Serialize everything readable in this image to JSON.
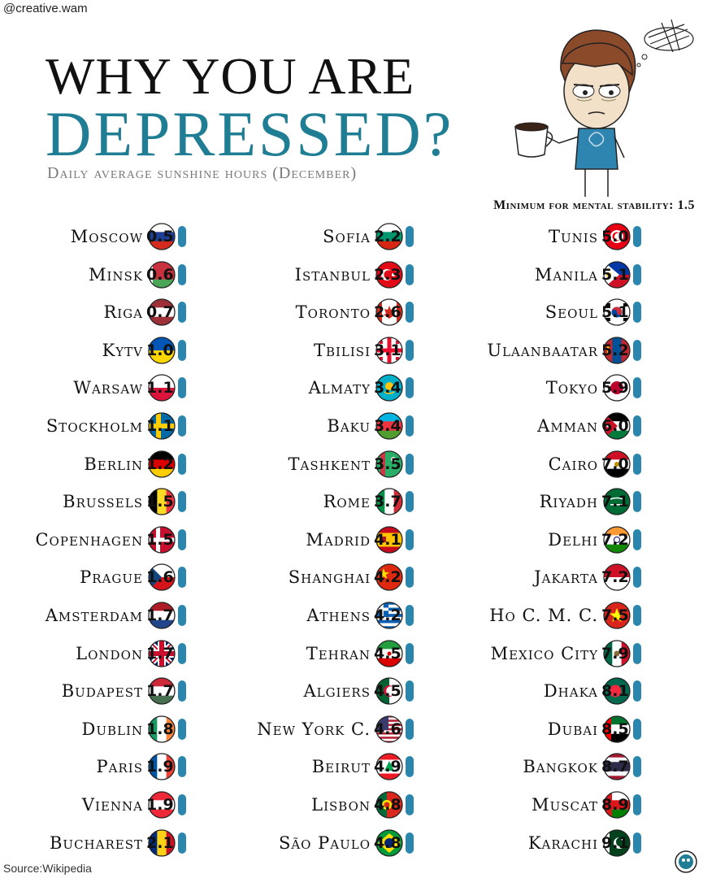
{
  "handle": "@creative.wam",
  "title_line1": "WHY YOU ARE",
  "title_line2": "DEPRESSED?",
  "subtitle": "Daily average sunshine hours (December)",
  "minimum_label": "Minimum for mental stability: 1.5",
  "source": "Source:Wikipedia",
  "colors": {
    "accent": "#1f7d94",
    "pill": "#2b86ae"
  },
  "chart_data": {
    "type": "table",
    "title": "Why you are depressed? Daily average sunshine hours (December)",
    "threshold": 1.5,
    "columns": [
      [
        {
          "city": "Moscow",
          "value": 0.5,
          "flag": "russia-flag-icon"
        },
        {
          "city": "Minsk",
          "value": 0.6,
          "flag": "belarus-flag-icon"
        },
        {
          "city": "Riga",
          "value": 0.7,
          "flag": "latvia-flag-icon"
        },
        {
          "city": "Kytv",
          "value": 1.0,
          "flag": "ukraine-flag-icon"
        },
        {
          "city": "Warsaw",
          "value": 1.1,
          "flag": "poland-flag-icon"
        },
        {
          "city": "Stockholm",
          "value": 1.1,
          "flag": "sweden-flag-icon"
        },
        {
          "city": "Berlin",
          "value": 1.2,
          "flag": "germany-flag-icon"
        },
        {
          "city": "Brussels",
          "value": 1.5,
          "flag": "belgium-flag-icon"
        },
        {
          "city": "Copenhagen",
          "value": 1.5,
          "flag": "denmark-flag-icon"
        },
        {
          "city": "Prague",
          "value": 1.6,
          "flag": "czechia-flag-icon"
        },
        {
          "city": "Amsterdam",
          "value": 1.7,
          "flag": "netherlands-flag-icon"
        },
        {
          "city": "London",
          "value": 1.7,
          "flag": "uk-flag-icon"
        },
        {
          "city": "Budapest",
          "value": 1.7,
          "flag": "hungary-flag-icon"
        },
        {
          "city": "Dublin",
          "value": 1.8,
          "flag": "ireland-flag-icon"
        },
        {
          "city": "Paris",
          "value": 1.9,
          "flag": "france-flag-icon"
        },
        {
          "city": "Vienna",
          "value": 1.9,
          "flag": "austria-flag-icon"
        },
        {
          "city": "Bucharest",
          "value": 2.1,
          "flag": "romania-flag-icon"
        }
      ],
      [
        {
          "city": "Sofia",
          "value": 2.2,
          "flag": "bulgaria-flag-icon"
        },
        {
          "city": "Istanbul",
          "value": 2.3,
          "flag": "turkey-flag-icon"
        },
        {
          "city": "Toronto",
          "value": 2.6,
          "flag": "canada-flag-icon"
        },
        {
          "city": "Tbilisi",
          "value": 3.1,
          "flag": "georgia-flag-icon"
        },
        {
          "city": "Almaty",
          "value": 3.4,
          "flag": "kazakhstan-flag-icon"
        },
        {
          "city": "Baku",
          "value": 3.4,
          "flag": "azerbaijan-flag-icon"
        },
        {
          "city": "Tashkent",
          "value": 3.5,
          "flag": "turkmenistan-flag-icon"
        },
        {
          "city": "Rome",
          "value": 3.7,
          "flag": "italy-flag-icon"
        },
        {
          "city": "Madrid",
          "value": 4.1,
          "flag": "spain-flag-icon"
        },
        {
          "city": "Shanghai",
          "value": 4.2,
          "flag": "china-flag-icon"
        },
        {
          "city": "Athens",
          "value": 4.2,
          "flag": "greece-flag-icon"
        },
        {
          "city": "Tehran",
          "value": 4.5,
          "flag": "iran-flag-icon"
        },
        {
          "city": "Algiers",
          "value": 4.5,
          "flag": "algeria-flag-icon"
        },
        {
          "city": "New York C.",
          "value": 4.6,
          "flag": "usa-flag-icon"
        },
        {
          "city": "Beirut",
          "value": 4.9,
          "flag": "lebanon-flag-icon"
        },
        {
          "city": "Lisbon",
          "value": 4.8,
          "flag": "portugal-flag-icon"
        },
        {
          "city": "São Paulo",
          "value": 4.8,
          "flag": "brazil-flag-icon"
        }
      ],
      [
        {
          "city": "Tunis",
          "value": 5.0,
          "flag": "tunisia-flag-icon"
        },
        {
          "city": "Manila",
          "value": 5.1,
          "flag": "philippines-flag-icon"
        },
        {
          "city": "Seoul",
          "value": 5.1,
          "flag": "south-korea-flag-icon"
        },
        {
          "city": "Ulaanbaatar",
          "value": 5.2,
          "flag": "mongolia-flag-icon"
        },
        {
          "city": "Tokyo",
          "value": 5.9,
          "flag": "japan-flag-icon"
        },
        {
          "city": "Amman",
          "value": 6.0,
          "flag": "jordan-flag-icon"
        },
        {
          "city": "Cairo",
          "value": 7.0,
          "flag": "egypt-flag-icon"
        },
        {
          "city": "Riyadh",
          "value": 7.1,
          "flag": "saudi-arabia-flag-icon"
        },
        {
          "city": "Delhi",
          "value": 7.2,
          "flag": "india-flag-icon"
        },
        {
          "city": "Jakarta",
          "value": 7.2,
          "flag": "indonesia-flag-icon"
        },
        {
          "city": "Ho C. M. C.",
          "value": 7.5,
          "flag": "vietnam-flag-icon"
        },
        {
          "city": "Mexico City",
          "value": 7.9,
          "flag": "mexico-flag-icon"
        },
        {
          "city": "Dhaka",
          "value": 8.1,
          "flag": "bangladesh-flag-icon"
        },
        {
          "city": "Dubai",
          "value": 8.5,
          "flag": "uae-flag-icon"
        },
        {
          "city": "Bangkok",
          "value": 8.7,
          "flag": "thailand-flag-icon"
        },
        {
          "city": "Muscat",
          "value": 8.9,
          "flag": "oman-flag-icon"
        },
        {
          "city": "Karachi",
          "value": 9.1,
          "flag": "pakistan-flag-icon"
        }
      ]
    ]
  }
}
